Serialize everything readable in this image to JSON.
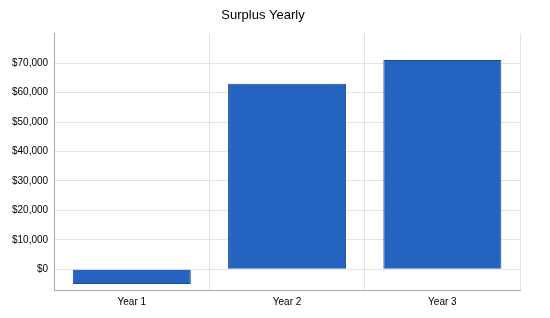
{
  "chart_data": {
    "type": "bar",
    "title": "Surplus Yearly",
    "categories": [
      "Year 1",
      "Year 2",
      "Year 3"
    ],
    "values": [
      -5000,
      63000,
      71000
    ],
    "color": "#2563c0",
    "ylim": [
      -7000,
      80000
    ],
    "yticks": [
      {
        "value": 0,
        "label": "$0"
      },
      {
        "value": 10000,
        "label": "$10,000"
      },
      {
        "value": 20000,
        "label": "$20,000"
      },
      {
        "value": 30000,
        "label": "$30,000"
      },
      {
        "value": 40000,
        "label": "$40,000"
      },
      {
        "value": 50000,
        "label": "$50,000"
      },
      {
        "value": 60000,
        "label": "$60,000"
      },
      {
        "value": 70000,
        "label": "$70,000"
      }
    ],
    "grid": true
  }
}
